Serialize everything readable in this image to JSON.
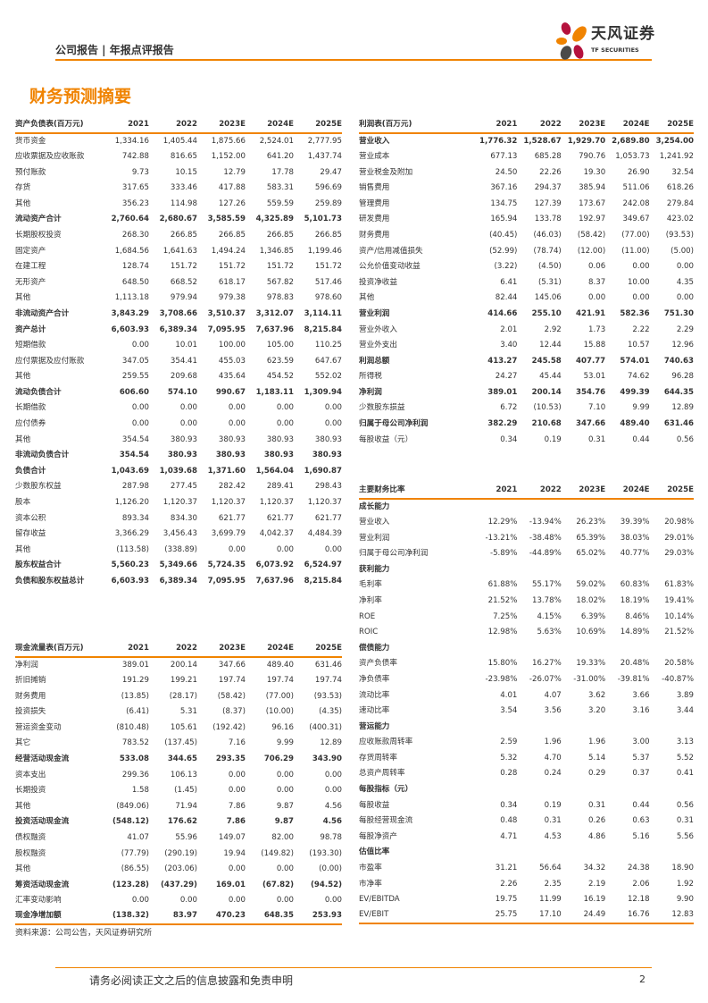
{
  "header": {
    "text": "公司报告 | 年报点评报告",
    "logo_cn": "天风证券",
    "logo_en": "TF SECURITIES"
  },
  "colors": {
    "accent": "#f08300",
    "logo_red": "#b5123d",
    "logo_gray": "#4a4a4a"
  },
  "title": "财务预测摘要",
  "years": [
    "2021",
    "2022",
    "2023E",
    "2024E",
    "2025E"
  ],
  "balance_sheet": {
    "title": "资产负债表(百万元)",
    "rows": [
      {
        "l": "货币资金",
        "v": [
          "1,334.16",
          "1,405.44",
          "1,875.66",
          "2,524.01",
          "2,777.95"
        ]
      },
      {
        "l": "应收票据及应收账款",
        "v": [
          "742.88",
          "816.65",
          "1,152.00",
          "641.20",
          "1,437.74"
        ]
      },
      {
        "l": "预付账款",
        "v": [
          "9.73",
          "10.15",
          "12.79",
          "17.78",
          "29.47"
        ]
      },
      {
        "l": "存货",
        "v": [
          "317.65",
          "333.46",
          "417.88",
          "583.31",
          "596.69"
        ]
      },
      {
        "l": "其他",
        "v": [
          "356.23",
          "114.98",
          "127.26",
          "559.59",
          "259.89"
        ]
      },
      {
        "l": "流动资产合计",
        "b": true,
        "v": [
          "2,760.64",
          "2,680.67",
          "3,585.59",
          "4,325.89",
          "5,101.73"
        ]
      },
      {
        "l": "长期股权投资",
        "v": [
          "268.30",
          "266.85",
          "266.85",
          "266.85",
          "266.85"
        ]
      },
      {
        "l": "固定资产",
        "v": [
          "1,684.56",
          "1,641.63",
          "1,494.24",
          "1,346.85",
          "1,199.46"
        ]
      },
      {
        "l": "在建工程",
        "v": [
          "128.74",
          "151.72",
          "151.72",
          "151.72",
          "151.72"
        ]
      },
      {
        "l": "无形资产",
        "v": [
          "648.50",
          "668.52",
          "618.17",
          "567.82",
          "517.46"
        ]
      },
      {
        "l": "其他",
        "v": [
          "1,113.18",
          "979.94",
          "979.38",
          "978.83",
          "978.60"
        ]
      },
      {
        "l": "非流动资产合计",
        "b": true,
        "v": [
          "3,843.29",
          "3,708.66",
          "3,510.37",
          "3,312.07",
          "3,114.11"
        ]
      },
      {
        "l": "资产总计",
        "b": true,
        "v": [
          "6,603.93",
          "6,389.34",
          "7,095.95",
          "7,637.96",
          "8,215.84"
        ]
      },
      {
        "l": "短期借款",
        "v": [
          "0.00",
          "10.01",
          "100.00",
          "105.00",
          "110.25"
        ]
      },
      {
        "l": "应付票据及应付账款",
        "v": [
          "347.05",
          "354.41",
          "455.03",
          "623.59",
          "647.67"
        ]
      },
      {
        "l": "其他",
        "v": [
          "259.55",
          "209.68",
          "435.64",
          "454.52",
          "552.02"
        ]
      },
      {
        "l": "流动负债合计",
        "b": true,
        "v": [
          "606.60",
          "574.10",
          "990.67",
          "1,183.11",
          "1,309.94"
        ]
      },
      {
        "l": "长期借款",
        "v": [
          "0.00",
          "0.00",
          "0.00",
          "0.00",
          "0.00"
        ]
      },
      {
        "l": "应付债券",
        "v": [
          "0.00",
          "0.00",
          "0.00",
          "0.00",
          "0.00"
        ]
      },
      {
        "l": "其他",
        "v": [
          "354.54",
          "380.93",
          "380.93",
          "380.93",
          "380.93"
        ]
      },
      {
        "l": "非流动负债合计",
        "b": true,
        "v": [
          "354.54",
          "380.93",
          "380.93",
          "380.93",
          "380.93"
        ]
      },
      {
        "l": "负债合计",
        "b": true,
        "v": [
          "1,043.69",
          "1,039.68",
          "1,371.60",
          "1,564.04",
          "1,690.87"
        ]
      },
      {
        "l": "少数股东权益",
        "v": [
          "287.98",
          "277.45",
          "282.42",
          "289.41",
          "298.43"
        ]
      },
      {
        "l": "股本",
        "v": [
          "1,126.20",
          "1,120.37",
          "1,120.37",
          "1,120.37",
          "1,120.37"
        ]
      },
      {
        "l": "资本公积",
        "v": [
          "893.34",
          "834.30",
          "621.77",
          "621.77",
          "621.77"
        ]
      },
      {
        "l": "留存收益",
        "v": [
          "3,366.29",
          "3,456.43",
          "3,699.79",
          "4,042.37",
          "4,484.39"
        ]
      },
      {
        "l": "其他",
        "v": [
          "(113.58)",
          "(338.89)",
          "0.00",
          "0.00",
          "0.00"
        ]
      },
      {
        "l": "股东权益合计",
        "b": true,
        "v": [
          "5,560.23",
          "5,349.66",
          "5,724.35",
          "6,073.92",
          "6,524.97"
        ]
      },
      {
        "l": "负债和股东权益总计",
        "b": true,
        "v": [
          "6,603.93",
          "6,389.34",
          "7,095.95",
          "7,637.96",
          "8,215.84"
        ]
      }
    ]
  },
  "income_statement": {
    "title": "利润表(百万元)",
    "rows": [
      {
        "l": "营业收入",
        "b": true,
        "v": [
          "1,776.32",
          "1,528.67",
          "1,929.70",
          "2,689.80",
          "3,254.00"
        ]
      },
      {
        "l": "营业成本",
        "v": [
          "677.13",
          "685.28",
          "790.76",
          "1,053.73",
          "1,241.92"
        ]
      },
      {
        "l": "营业税金及附加",
        "v": [
          "24.50",
          "22.26",
          "19.30",
          "26.90",
          "32.54"
        ]
      },
      {
        "l": "销售费用",
        "v": [
          "367.16",
          "294.37",
          "385.94",
          "511.06",
          "618.26"
        ]
      },
      {
        "l": "管理费用",
        "v": [
          "134.75",
          "127.39",
          "173.67",
          "242.08",
          "279.84"
        ]
      },
      {
        "l": "研发费用",
        "v": [
          "165.94",
          "133.78",
          "192.97",
          "349.67",
          "423.02"
        ]
      },
      {
        "l": "财务费用",
        "v": [
          "(40.45)",
          "(46.03)",
          "(58.42)",
          "(77.00)",
          "(93.53)"
        ]
      },
      {
        "l": "资产/信用减值损失",
        "v": [
          "(52.99)",
          "(78.74)",
          "(12.00)",
          "(11.00)",
          "(5.00)"
        ]
      },
      {
        "l": "公允价值变动收益",
        "v": [
          "(3.22)",
          "(4.50)",
          "0.06",
          "0.00",
          "0.00"
        ]
      },
      {
        "l": "投资净收益",
        "v": [
          "6.41",
          "(5.31)",
          "8.37",
          "10.00",
          "4.35"
        ]
      },
      {
        "l": "其他",
        "v": [
          "82.44",
          "145.06",
          "0.00",
          "0.00",
          "0.00"
        ]
      },
      {
        "l": "营业利润",
        "b": true,
        "v": [
          "414.66",
          "255.10",
          "421.91",
          "582.36",
          "751.30"
        ]
      },
      {
        "l": "营业外收入",
        "v": [
          "2.01",
          "2.92",
          "1.73",
          "2.22",
          "2.29"
        ]
      },
      {
        "l": "营业外支出",
        "v": [
          "3.40",
          "12.44",
          "15.88",
          "10.57",
          "12.96"
        ]
      },
      {
        "l": "利润总额",
        "b": true,
        "v": [
          "413.27",
          "245.58",
          "407.77",
          "574.01",
          "740.63"
        ]
      },
      {
        "l": "所得税",
        "v": [
          "24.27",
          "45.44",
          "53.01",
          "74.62",
          "96.28"
        ]
      },
      {
        "l": "净利润",
        "b": true,
        "v": [
          "389.01",
          "200.14",
          "354.76",
          "499.39",
          "644.35"
        ]
      },
      {
        "l": "少数股东损益",
        "v": [
          "6.72",
          "(10.53)",
          "7.10",
          "9.99",
          "12.89"
        ]
      },
      {
        "l": "归属于母公司净利润",
        "b": true,
        "v": [
          "382.29",
          "210.68",
          "347.66",
          "489.40",
          "631.46"
        ]
      },
      {
        "l": "每股收益（元）",
        "v": [
          "0.34",
          "0.19",
          "0.31",
          "0.44",
          "0.56"
        ]
      }
    ]
  },
  "cash_flow": {
    "title": "现金流量表(百万元)",
    "rows": [
      {
        "l": "净利润",
        "v": [
          "389.01",
          "200.14",
          "347.66",
          "489.40",
          "631.46"
        ]
      },
      {
        "l": "折旧摊销",
        "v": [
          "191.29",
          "199.21",
          "197.74",
          "197.74",
          "197.74"
        ]
      },
      {
        "l": "财务费用",
        "v": [
          "(13.85)",
          "(28.17)",
          "(58.42)",
          "(77.00)",
          "(93.53)"
        ]
      },
      {
        "l": "投资损失",
        "v": [
          "(6.41)",
          "5.31",
          "(8.37)",
          "(10.00)",
          "(4.35)"
        ]
      },
      {
        "l": "营运资金变动",
        "v": [
          "(810.48)",
          "105.61",
          "(192.42)",
          "96.16",
          "(400.31)"
        ]
      },
      {
        "l": "其它",
        "v": [
          "783.52",
          "(137.45)",
          "7.16",
          "9.99",
          "12.89"
        ]
      },
      {
        "l": "经营活动现金流",
        "b": true,
        "v": [
          "533.08",
          "344.65",
          "293.35",
          "706.29",
          "343.90"
        ]
      },
      {
        "l": "资本支出",
        "v": [
          "299.36",
          "106.13",
          "0.00",
          "0.00",
          "0.00"
        ]
      },
      {
        "l": "长期投资",
        "v": [
          "1.58",
          "(1.45)",
          "0.00",
          "0.00",
          "0.00"
        ]
      },
      {
        "l": "其他",
        "v": [
          "(849.06)",
          "71.94",
          "7.86",
          "9.87",
          "4.56"
        ]
      },
      {
        "l": "投资活动现金流",
        "b": true,
        "v": [
          "(548.12)",
          "176.62",
          "7.86",
          "9.87",
          "4.56"
        ]
      },
      {
        "l": "债权融资",
        "v": [
          "41.07",
          "55.96",
          "149.07",
          "82.00",
          "98.78"
        ]
      },
      {
        "l": "股权融资",
        "v": [
          "(77.79)",
          "(290.19)",
          "19.94",
          "(149.82)",
          "(193.30)"
        ]
      },
      {
        "l": "其他",
        "v": [
          "(86.55)",
          "(203.06)",
          "0.00",
          "0.00",
          "(0.00)"
        ]
      },
      {
        "l": "筹资活动现金流",
        "b": true,
        "v": [
          "(123.28)",
          "(437.29)",
          "169.01",
          "(67.82)",
          "(94.52)"
        ]
      },
      {
        "l": "汇率变动影响",
        "v": [
          "0.00",
          "0.00",
          "0.00",
          "0.00",
          "0.00"
        ]
      },
      {
        "l": "现金净增加额",
        "b": true,
        "v": [
          "(138.32)",
          "83.97",
          "470.23",
          "648.35",
          "253.93"
        ]
      }
    ]
  },
  "ratios": {
    "title": "主要财务比率",
    "rows": [
      {
        "l": "成长能力",
        "b": true,
        "v": []
      },
      {
        "l": "营业收入",
        "v": [
          "12.29%",
          "-13.94%",
          "26.23%",
          "39.39%",
          "20.98%"
        ]
      },
      {
        "l": "营业利润",
        "v": [
          "-13.21%",
          "-38.48%",
          "65.39%",
          "38.03%",
          "29.01%"
        ]
      },
      {
        "l": "归属于母公司净利润",
        "v": [
          "-5.89%",
          "-44.89%",
          "65.02%",
          "40.77%",
          "29.03%"
        ]
      },
      {
        "l": "获利能力",
        "b": true,
        "v": []
      },
      {
        "l": "毛利率",
        "v": [
          "61.88%",
          "55.17%",
          "59.02%",
          "60.83%",
          "61.83%"
        ]
      },
      {
        "l": "净利率",
        "v": [
          "21.52%",
          "13.78%",
          "18.02%",
          "18.19%",
          "19.41%"
        ]
      },
      {
        "l": "ROE",
        "v": [
          "7.25%",
          "4.15%",
          "6.39%",
          "8.46%",
          "10.14%"
        ]
      },
      {
        "l": "ROIC",
        "v": [
          "12.98%",
          "5.63%",
          "10.69%",
          "14.89%",
          "21.52%"
        ]
      },
      {
        "l": "偿债能力",
        "b": true,
        "v": []
      },
      {
        "l": "资产负债率",
        "v": [
          "15.80%",
          "16.27%",
          "19.33%",
          "20.48%",
          "20.58%"
        ]
      },
      {
        "l": "净负债率",
        "v": [
          "-23.98%",
          "-26.07%",
          "-31.00%",
          "-39.81%",
          "-40.87%"
        ]
      },
      {
        "l": "流动比率",
        "v": [
          "4.01",
          "4.07",
          "3.62",
          "3.66",
          "3.89"
        ]
      },
      {
        "l": "速动比率",
        "v": [
          "3.54",
          "3.56",
          "3.20",
          "3.16",
          "3.44"
        ]
      },
      {
        "l": "营运能力",
        "b": true,
        "v": []
      },
      {
        "l": "应收账款周转率",
        "v": [
          "2.59",
          "1.96",
          "1.96",
          "3.00",
          "3.13"
        ]
      },
      {
        "l": "存货周转率",
        "v": [
          "5.32",
          "4.70",
          "5.14",
          "5.37",
          "5.52"
        ]
      },
      {
        "l": "总资产周转率",
        "v": [
          "0.28",
          "0.24",
          "0.29",
          "0.37",
          "0.41"
        ]
      },
      {
        "l": "每股指标（元）",
        "b": true,
        "v": []
      },
      {
        "l": "每股收益",
        "v": [
          "0.34",
          "0.19",
          "0.31",
          "0.44",
          "0.56"
        ]
      },
      {
        "l": "每股经营现金流",
        "v": [
          "0.48",
          "0.31",
          "0.26",
          "0.63",
          "0.31"
        ]
      },
      {
        "l": "每股净资产",
        "v": [
          "4.71",
          "4.53",
          "4.86",
          "5.16",
          "5.56"
        ]
      },
      {
        "l": "估值比率",
        "b": true,
        "v": []
      },
      {
        "l": "市盈率",
        "v": [
          "31.21",
          "56.64",
          "34.32",
          "24.38",
          "18.90"
        ]
      },
      {
        "l": "市净率",
        "v": [
          "2.26",
          "2.35",
          "2.19",
          "2.06",
          "1.92"
        ]
      },
      {
        "l": "EV/EBITDA",
        "v": [
          "19.75",
          "11.99",
          "16.19",
          "12.18",
          "9.90"
        ]
      },
      {
        "l": "EV/EBIT",
        "v": [
          "25.75",
          "17.10",
          "24.49",
          "16.76",
          "12.83"
        ]
      }
    ]
  },
  "source": "资料来源：公司公告，天风证券研究所",
  "footer": {
    "disclaimer": "请务必阅读正文之后的信息披露和免责申明",
    "page": "2"
  }
}
